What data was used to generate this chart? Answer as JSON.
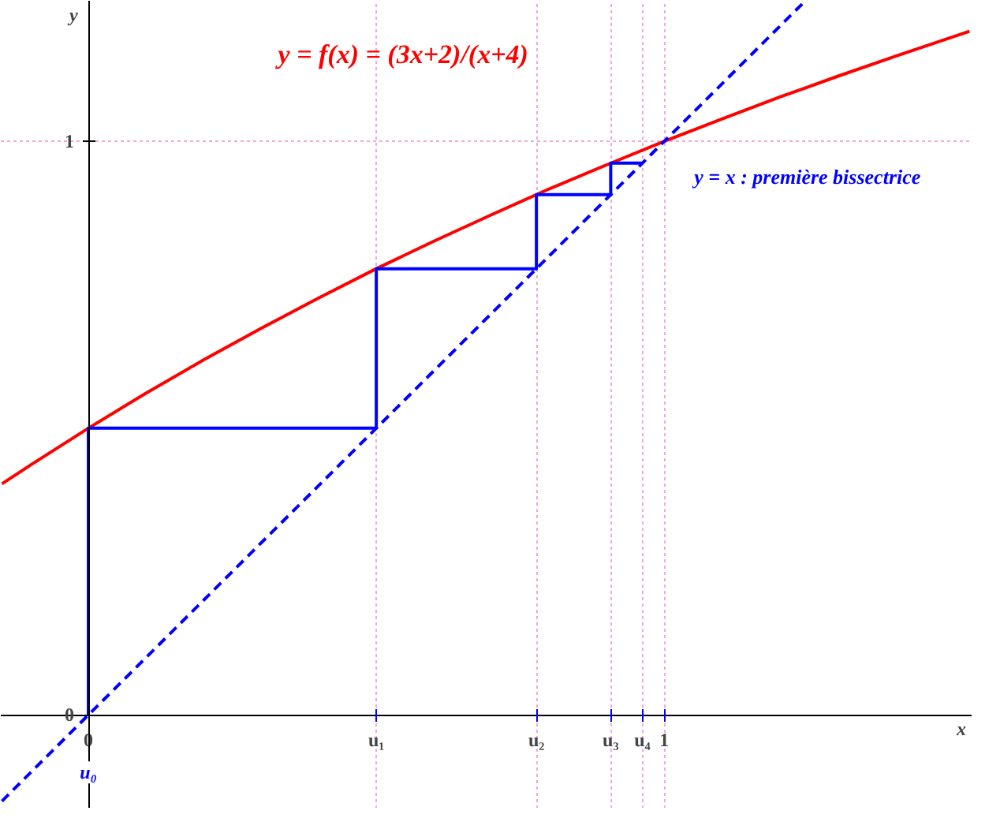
{
  "chart_data": {
    "type": "line",
    "xlabel": "x",
    "ylabel": "y",
    "xlim": [
      -0.152,
      1.535
    ],
    "ylim": [
      -0.163,
      1.245
    ],
    "xticks": [
      0,
      {
        "value": 0.5,
        "label": "u₁"
      },
      {
        "value": 0.778,
        "label": "u₂"
      },
      {
        "value": 0.907,
        "label": "u₃"
      },
      {
        "value": 0.962,
        "label": "u₄"
      },
      1
    ],
    "yticks": [
      0,
      1
    ],
    "annotations": [
      {
        "text": "u₀",
        "x": 0,
        "y": -0.1
      }
    ],
    "grid": true,
    "marker": "none",
    "series": [
      {
        "name": "y = f(x) = (3x+2)/(x+4)",
        "color": "#ff0000",
        "line_style": "solid",
        "x": [
          -0.15,
          -0.1,
          0,
          0.1,
          0.2,
          0.3,
          0.4,
          0.5,
          0.6,
          0.7,
          0.8,
          0.9,
          1.0,
          1.1,
          1.2,
          1.3,
          1.4,
          1.53
        ],
        "values": [
          0.403,
          0.436,
          0.5,
          0.561,
          0.619,
          0.674,
          0.727,
          0.778,
          0.826,
          0.872,
          0.917,
          0.959,
          1.0,
          1.039,
          1.077,
          1.113,
          1.148,
          1.192
        ]
      },
      {
        "name": "y = x : première bissectrice",
        "color": "#0000ff",
        "line_style": "dashed",
        "x": [
          -0.15,
          1.0,
          1.245
        ],
        "values": [
          -0.15,
          1.0,
          1.245
        ]
      },
      {
        "color": "#0000ff",
        "line_style": "solid",
        "x": [
          0,
          0,
          0.5,
          0.5,
          0.778,
          0.778,
          0.907,
          0.907,
          0.962
        ],
        "values": [
          0,
          0.5,
          0.5,
          0.778,
          0.778,
          0.907,
          0.907,
          0.962,
          0.962
        ]
      }
    ]
  }
}
